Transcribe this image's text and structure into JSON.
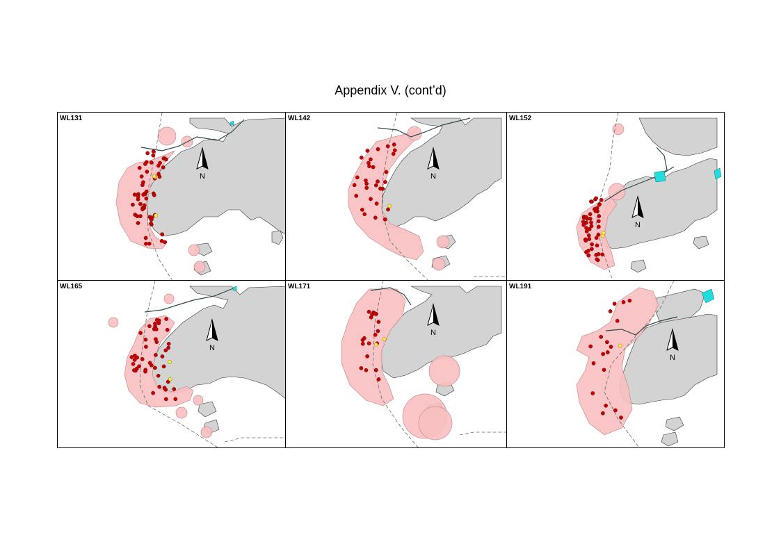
{
  "page": {
    "title": "Appendix V.  (cont’d)"
  },
  "colors": {
    "land": "#d3d3d3",
    "range_polygon": "#f8bfc1",
    "range_outline": "#c98c8c",
    "sighting_dot": "#cc0000",
    "sighting_dot_outline": "#5a0000",
    "highlight_dot": "#ffee44",
    "reservoir": "#22dddd",
    "road": "#2a4a4a",
    "boundary": "#666666"
  },
  "north_arrow": {
    "label": "N"
  },
  "panels": [
    {
      "label": "WL131",
      "sightings": {
        "red_count": 55,
        "yellow_count": 3
      }
    },
    {
      "label": "WL142",
      "sightings": {
        "red_count": 30,
        "yellow_count": 1
      }
    },
    {
      "label": "WL152",
      "sightings": {
        "red_count": 45,
        "yellow_count": 2
      }
    },
    {
      "label": "WL165",
      "sightings": {
        "red_count": 45,
        "yellow_count": 2
      }
    },
    {
      "label": "WL171",
      "sightings": {
        "red_count": 20,
        "yellow_count": 2
      }
    },
    {
      "label": "WL191",
      "sightings": {
        "red_count": 18,
        "yellow_count": 1
      }
    }
  ]
}
